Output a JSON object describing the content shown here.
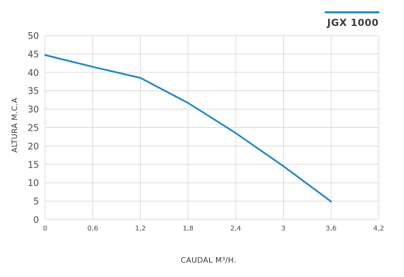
{
  "chart_data": {
    "type": "line",
    "xlabel": "CAUDAL M³/H.",
    "ylabel": "ALTURA M.C.A",
    "xlim": [
      0,
      4.2
    ],
    "ylim": [
      0,
      50
    ],
    "x_ticks": [
      0,
      0.6,
      1.2,
      1.8,
      2.4,
      3,
      3.6,
      4.2
    ],
    "x_tick_labels": [
      "0",
      "0,6",
      "1,2",
      "1,8",
      "2,4",
      "3",
      "3,6",
      "4,2"
    ],
    "y_ticks": [
      0,
      5,
      10,
      15,
      20,
      25,
      30,
      35,
      40,
      45,
      50
    ],
    "y_tick_labels": [
      "0",
      "5",
      "10",
      "15",
      "20",
      "25",
      "30",
      "35",
      "40",
      "45",
      "50"
    ],
    "grid": true,
    "legend_position": "top-right",
    "series": [
      {
        "name": "JGX 1000",
        "color": "#1f88c9",
        "x": [
          0,
          0.6,
          1.2,
          1.8,
          2.4,
          3.0,
          3.6
        ],
        "y": [
          44.7,
          41.5,
          38.5,
          31.7,
          23.5,
          14.5,
          4.9
        ]
      }
    ]
  }
}
